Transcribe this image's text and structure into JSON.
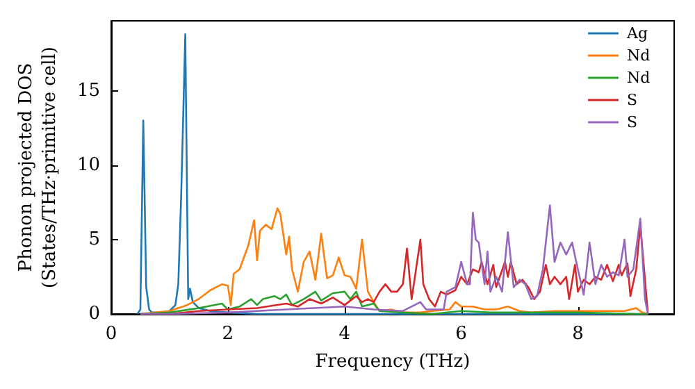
{
  "chart_data": {
    "type": "line",
    "xlabel": "Frequency (THz)",
    "ylabel": "Phonon projected DOS\n(States/THz·primitive cell)",
    "xlim": [
      0,
      9.65
    ],
    "xticks": [
      0,
      2,
      4,
      6,
      8
    ],
    "ylim": [
      0,
      19.7
    ],
    "yticks": [
      0,
      5,
      10,
      15
    ],
    "grid": false,
    "legend": "top right",
    "marker": "none",
    "line_style": "solid",
    "series": [
      {
        "name": "Ag",
        "color": "#1f77b4",
        "x": [
          0.45,
          0.5,
          0.55,
          0.6,
          0.65,
          0.7,
          0.9,
          1.0,
          1.1,
          1.15,
          1.2,
          1.27,
          1.32,
          1.35,
          1.4,
          1.5,
          1.7,
          2.0,
          2.5,
          3,
          4,
          5,
          6,
          7,
          8,
          9,
          9.2
        ],
        "values": [
          0,
          0.3,
          13.0,
          1.8,
          0.3,
          0.1,
          0.1,
          0.2,
          0.6,
          2.0,
          8,
          18.8,
          1.0,
          1.7,
          0.8,
          0.4,
          0.2,
          0.1,
          0,
          0,
          0,
          0,
          0,
          0,
          0,
          0,
          0
        ]
      },
      {
        "name": "Nd",
        "color": "#ff7f0e",
        "x": [
          0.5,
          1.0,
          1.3,
          1.5,
          1.7,
          1.9,
          2.0,
          2.05,
          2.1,
          2.2,
          2.35,
          2.45,
          2.5,
          2.55,
          2.65,
          2.75,
          2.85,
          2.9,
          3.0,
          3.05,
          3.1,
          3.2,
          3.3,
          3.4,
          3.5,
          3.6,
          3.7,
          3.8,
          3.9,
          4.0,
          4.1,
          4.2,
          4.3,
          4.4,
          4.5,
          4.6,
          4.8,
          5.0,
          5.3,
          5.5,
          5.8,
          5.9,
          6.0,
          6.2,
          6.4,
          6.6,
          6.8,
          7.0,
          7.2,
          7.6,
          8.0,
          8.5,
          8.8,
          9.0,
          9.1,
          9.2
        ],
        "values": [
          0,
          0.2,
          0.6,
          1.0,
          1.6,
          2.0,
          1.9,
          0.6,
          2.7,
          3.0,
          4.6,
          6.3,
          3.6,
          5.6,
          6.0,
          5.7,
          7.1,
          6.7,
          4.0,
          5.2,
          3.0,
          1.5,
          3.5,
          4.2,
          2.3,
          5.4,
          2.4,
          2.6,
          3.8,
          2.6,
          2.5,
          1.7,
          5.0,
          1.5,
          0.8,
          0.2,
          0.3,
          0.1,
          0.1,
          0.2,
          0.3,
          0.8,
          0.5,
          0.5,
          0.3,
          0.3,
          0.5,
          0.2,
          0.1,
          0.2,
          0.2,
          0.2,
          0.2,
          0.4,
          0.1,
          0
        ]
      },
      {
        "name": "Nd",
        "color": "#2ca02c",
        "x": [
          0.5,
          1.0,
          1.5,
          1.9,
          2.0,
          2.2,
          2.4,
          2.5,
          2.6,
          2.8,
          2.9,
          3.0,
          3.1,
          3.3,
          3.5,
          3.6,
          3.8,
          4.0,
          4.1,
          4.2,
          4.3,
          4.5,
          4.6,
          5.0,
          5.5,
          6.0,
          6.5,
          7.0,
          8.0,
          9.0,
          9.2
        ],
        "values": [
          0,
          0.1,
          0.4,
          0.7,
          0.3,
          0.5,
          1.0,
          0.6,
          1.0,
          1.2,
          1.0,
          1.3,
          0.6,
          1.0,
          1.5,
          0.9,
          1.4,
          1.5,
          1.0,
          1.5,
          0.5,
          0.7,
          0.2,
          0.1,
          0,
          0.2,
          0.1,
          0.1,
          0.1,
          0,
          0
        ]
      },
      {
        "name": "S",
        "color": "#d62728",
        "x": [
          0.5,
          1.0,
          1.5,
          2.0,
          2.5,
          3.0,
          3.2,
          3.4,
          3.6,
          3.8,
          4.0,
          4.2,
          4.3,
          4.4,
          4.5,
          4.6,
          4.7,
          4.8,
          4.9,
          5.0,
          5.07,
          5.15,
          5.3,
          5.35,
          5.45,
          5.55,
          5.65,
          5.75,
          5.9,
          6.0,
          6.1,
          6.2,
          6.3,
          6.35,
          6.45,
          6.55,
          6.6,
          6.75,
          6.8,
          6.85,
          6.95,
          7.05,
          7.15,
          7.25,
          7.35,
          7.45,
          7.52,
          7.6,
          7.7,
          7.8,
          7.85,
          7.95,
          8.0,
          8.1,
          8.2,
          8.3,
          8.4,
          8.5,
          8.6,
          8.7,
          8.75,
          8.85,
          8.9,
          9.0,
          9.07,
          9.15,
          9.2
        ],
        "values": [
          0,
          0,
          0.2,
          0.3,
          0.4,
          0.7,
          0.5,
          1.0,
          0.7,
          1.1,
          0.6,
          1.2,
          0.8,
          1.0,
          0.8,
          1.5,
          2.0,
          1.5,
          1.5,
          2.0,
          4.4,
          1.0,
          5.0,
          2.0,
          1.0,
          0.5,
          1.5,
          1.3,
          1.6,
          2.5,
          2.0,
          3.0,
          2.8,
          3.5,
          2.0,
          3.3,
          1.8,
          3.5,
          2.5,
          3.5,
          2.0,
          2.3,
          1.8,
          1.0,
          1.5,
          3.3,
          2.0,
          2.5,
          2.0,
          2.5,
          1.0,
          3.3,
          1.5,
          2.3,
          2.0,
          2.5,
          2.3,
          3.3,
          2.2,
          3.3,
          2.6,
          3.4,
          1.2,
          3.0,
          6.0,
          null,
          0
        ]
      },
      {
        "name": "S",
        "color": "#9467bd",
        "x": [
          0.5,
          1.0,
          2.0,
          3.0,
          4.0,
          4.5,
          5.0,
          5.3,
          5.4,
          5.7,
          5.75,
          5.9,
          6.0,
          6.1,
          6.15,
          6.2,
          6.25,
          6.3,
          6.4,
          6.45,
          6.5,
          6.6,
          6.7,
          6.8,
          6.9,
          7.0,
          7.1,
          7.2,
          7.3,
          7.4,
          7.52,
          7.6,
          7.7,
          7.8,
          7.9,
          8.0,
          8.1,
          8.2,
          8.3,
          8.4,
          8.5,
          8.6,
          8.7,
          8.8,
          8.85,
          8.95,
          9.07,
          9.15,
          9.2
        ],
        "values": [
          0,
          0,
          0.1,
          0.3,
          0.5,
          0.3,
          0.2,
          0.8,
          0.3,
          0.3,
          1.5,
          1.8,
          3.5,
          2.0,
          2.0,
          6.8,
          5.0,
          4.8,
          2.0,
          4.2,
          1.5,
          2.5,
          1.5,
          5.5,
          1.8,
          2.3,
          2.0,
          1.0,
          1.2,
          3.0,
          7.3,
          3.5,
          4.8,
          4.0,
          4.8,
          3.0,
          1.3,
          4.8,
          2.0,
          3.3,
          2.5,
          2.8,
          2.6,
          5.0,
          2.5,
          3.0,
          6.4,
          1.0,
          0
        ]
      }
    ]
  }
}
